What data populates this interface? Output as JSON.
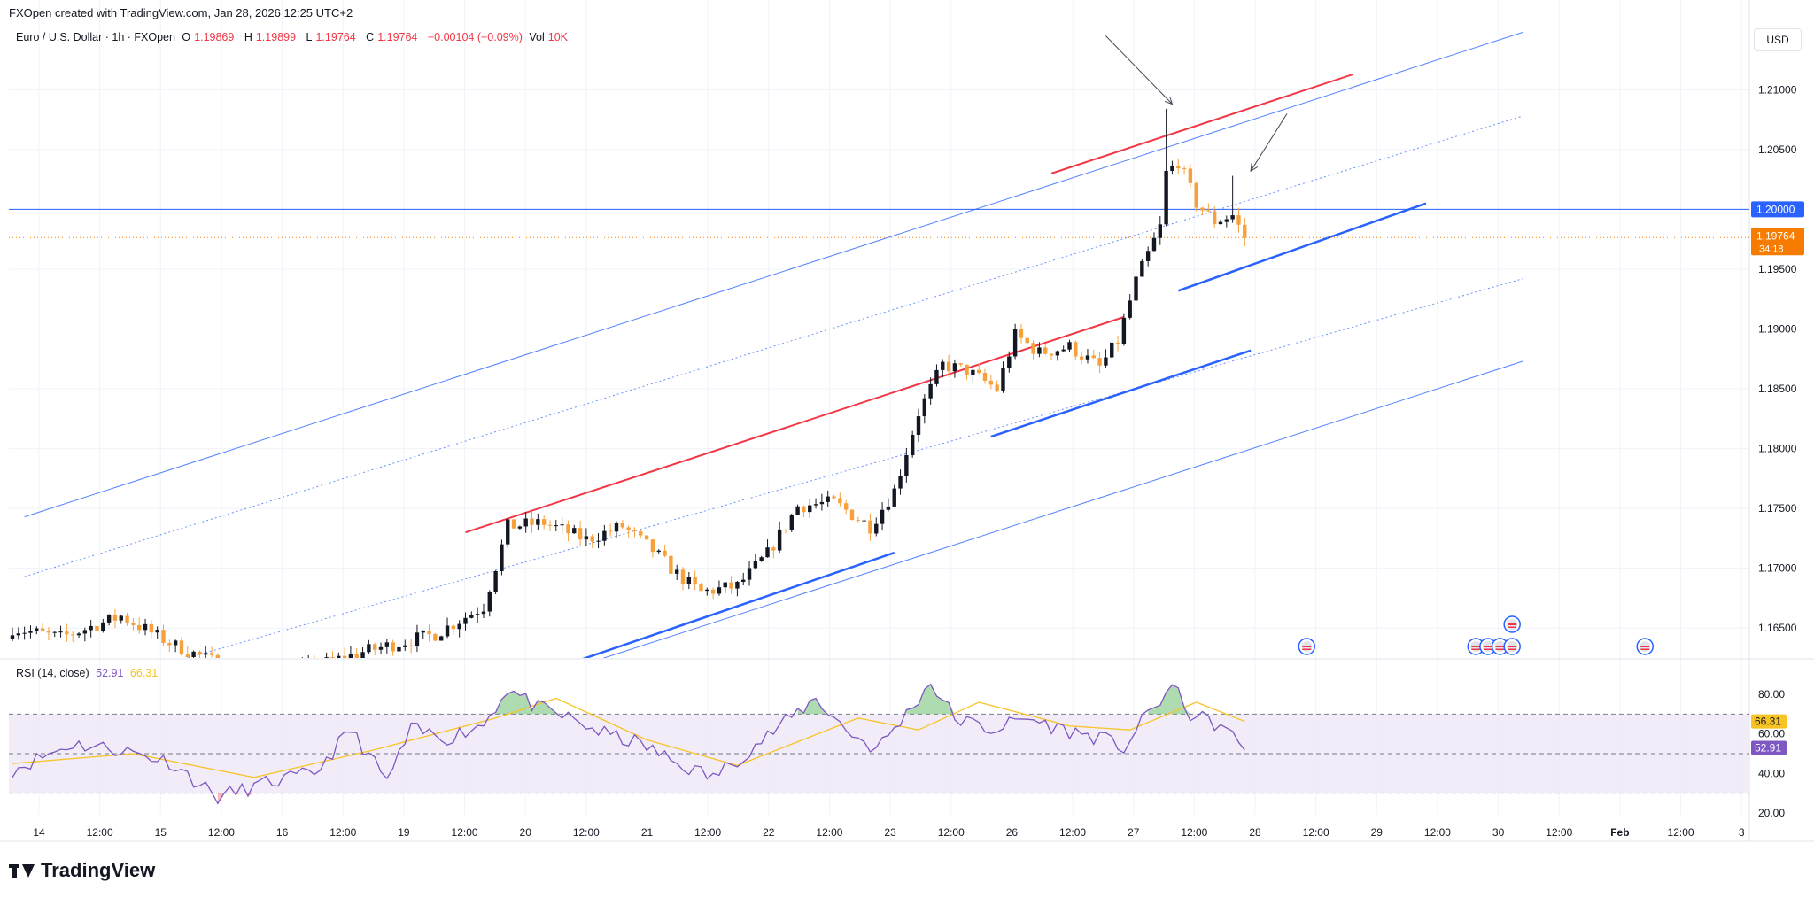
{
  "header": {
    "credit": "FXOpen created with TradingView.com, Jan 28, 2026 12:25 UTC+2",
    "symbol": "Euro / U.S. Dollar · 1h · FXOpen",
    "open_label": "O",
    "open": "1.19869",
    "high_label": "H",
    "high": "1.19899",
    "low_label": "L",
    "low": "1.19764",
    "close_label": "C",
    "close": "1.19764",
    "change": "−0.00104 (−0.09%)",
    "vol_label": "Vol",
    "vol": "10K",
    "currency_button": "USD"
  },
  "rsi_legend": {
    "label": "RSI (14, close)",
    "rsi_value": "52.91",
    "ma_value": "66.31"
  },
  "branding": {
    "logo_text": "TradingView"
  },
  "colors": {
    "up_candle": "#131722",
    "down_candle": "#f7a13c",
    "channel_blue": "#2962ff",
    "channel_red": "#f23645",
    "rsi_line": "#7e57c2",
    "rsi_ma": "#f7c325",
    "rsi_band": "#ede7f6",
    "price_tag": "#f57c00",
    "level_tag": "#2962ff"
  },
  "chart_data": [
    {
      "type": "candlestick",
      "title": "Euro / U.S. Dollar · 1h · FXOpen",
      "ylim": [
        1.1625,
        1.2175
      ],
      "y_ticks": [
        "1.21000",
        "1.20500",
        "1.20000",
        "1.19500",
        "1.19000",
        "1.18500",
        "1.18000",
        "1.17500",
        "1.17000",
        "1.16500"
      ],
      "x_ticks": [
        "14",
        "12:00",
        "15",
        "12:00",
        "16",
        "12:00",
        "19",
        "12:00",
        "20",
        "12:00",
        "21",
        "12:00",
        "22",
        "12:00",
        "23",
        "12:00",
        "26",
        "12:00",
        "27",
        "12:00",
        "28",
        "12:00",
        "29",
        "12:00",
        "30",
        "12:00",
        "Feb",
        "12:00",
        "3"
      ],
      "horizontal_level": {
        "value": 1.2,
        "label": "1.20000"
      },
      "last_price": {
        "value": 1.19764,
        "label": "1.19764",
        "countdown": "34:18"
      },
      "close_anchors": [
        {
          "bar": 0,
          "close": 1.165
        },
        {
          "bar": 8,
          "close": 1.1642
        },
        {
          "bar": 18,
          "close": 1.166
        },
        {
          "bar": 27,
          "close": 1.1635
        },
        {
          "bar": 38,
          "close": 1.1612
        },
        {
          "bar": 48,
          "close": 1.1615
        },
        {
          "bar": 58,
          "close": 1.163
        },
        {
          "bar": 70,
          "close": 1.1645
        },
        {
          "bar": 78,
          "close": 1.1668
        },
        {
          "bar": 82,
          "close": 1.1735
        },
        {
          "bar": 88,
          "close": 1.1738
        },
        {
          "bar": 95,
          "close": 1.1724
        },
        {
          "bar": 101,
          "close": 1.1735
        },
        {
          "bar": 106,
          "close": 1.1715
        },
        {
          "bar": 110,
          "close": 1.1695
        },
        {
          "bar": 114,
          "close": 1.168
        },
        {
          "bar": 120,
          "close": 1.1685
        },
        {
          "bar": 125,
          "close": 1.1712
        },
        {
          "bar": 130,
          "close": 1.1752
        },
        {
          "bar": 136,
          "close": 1.1755
        },
        {
          "bar": 142,
          "close": 1.1735
        },
        {
          "bar": 146,
          "close": 1.1765
        },
        {
          "bar": 150,
          "close": 1.183
        },
        {
          "bar": 154,
          "close": 1.187
        },
        {
          "bar": 158,
          "close": 1.1865
        },
        {
          "bar": 163,
          "close": 1.185
        },
        {
          "bar": 166,
          "close": 1.1895
        },
        {
          "bar": 170,
          "close": 1.188
        },
        {
          "bar": 175,
          "close": 1.1885
        },
        {
          "bar": 180,
          "close": 1.1868
        },
        {
          "bar": 183,
          "close": 1.189
        },
        {
          "bar": 186,
          "close": 1.194
        },
        {
          "bar": 190,
          "close": 1.1985
        },
        {
          "bar": 191,
          "close": 1.203
        },
        {
          "bar": 193,
          "close": 1.204
        },
        {
          "bar": 196,
          "close": 1.2005
        },
        {
          "bar": 199,
          "close": 1.199
        },
        {
          "bar": 202,
          "close": 1.1995
        },
        {
          "bar": 204,
          "close": 1.19764
        }
      ],
      "channel_lines": [
        {
          "style": "solid",
          "from": {
            "bar": 2,
            "price": 1.1743
          },
          "to": {
            "bar": 250,
            "price": 1.2148
          }
        },
        {
          "style": "dotted",
          "from": {
            "bar": 2,
            "price": 1.1693
          },
          "to": {
            "bar": 250,
            "price": 1.2078
          }
        },
        {
          "style": "dotted",
          "from": {
            "bar": 8,
            "price": 1.1595
          },
          "to": {
            "bar": 250,
            "price": 1.1942
          }
        },
        {
          "style": "solid",
          "from": {
            "bar": 55,
            "price": 1.1555
          },
          "to": {
            "bar": 250,
            "price": 1.1873
          }
        },
        {
          "style": "red",
          "from": {
            "bar": 75,
            "price": 1.173
          },
          "to": {
            "bar": 184,
            "price": 1.191
          }
        },
        {
          "style": "red",
          "from": {
            "bar": 172,
            "price": 1.203
          },
          "to": {
            "bar": 222,
            "price": 1.2113
          }
        },
        {
          "style": "blue-bold",
          "from": {
            "bar": 92,
            "price": 1.162
          },
          "to": {
            "bar": 146,
            "price": 1.1713
          }
        },
        {
          "style": "blue-bold",
          "from": {
            "bar": 162,
            "price": 1.181
          },
          "to": {
            "bar": 205,
            "price": 1.1882
          }
        },
        {
          "style": "blue-bold",
          "from": {
            "bar": 193,
            "price": 1.1932
          },
          "to": {
            "bar": 234,
            "price": 1.2005
          }
        }
      ],
      "annotations": [
        {
          "type": "arrow",
          "from": {
            "bar": 181,
            "price": 1.2145
          },
          "to": {
            "bar": 192,
            "price": 1.2088
          }
        },
        {
          "type": "arrow",
          "from": {
            "bar": 211,
            "price": 1.208
          },
          "to": {
            "bar": 205,
            "price": 1.2032
          }
        }
      ],
      "event_markers": [
        {
          "bar": 215,
          "row": "low"
        },
        {
          "bar": 243,
          "row": "low"
        },
        {
          "bar": 245,
          "row": "low"
        },
        {
          "bar": 247,
          "row": "low"
        },
        {
          "bar": 249,
          "row": "low"
        },
        {
          "bar": 249,
          "row": "high"
        },
        {
          "bar": 271,
          "row": "low"
        }
      ]
    },
    {
      "type": "line",
      "title": "RSI (14, close)",
      "ylim": [
        17,
        90
      ],
      "y_ticks": [
        "80.00",
        "60.00",
        "40.00",
        "20.00"
      ],
      "bands": {
        "upper": 70,
        "middle": 50,
        "lower": 30
      },
      "series": [
        {
          "name": "RSI",
          "last": "52.91"
        },
        {
          "name": "RSI-based MA",
          "last": "66.31"
        }
      ],
      "rsi_anchors": [
        {
          "bar": 0,
          "value": 42
        },
        {
          "bar": 10,
          "value": 55
        },
        {
          "bar": 18,
          "value": 52
        },
        {
          "bar": 26,
          "value": 46
        },
        {
          "bar": 34,
          "value": 28
        },
        {
          "bar": 42,
          "value": 35
        },
        {
          "bar": 50,
          "value": 40
        },
        {
          "bar": 56,
          "value": 62
        },
        {
          "bar": 62,
          "value": 36
        },
        {
          "bar": 66,
          "value": 62
        },
        {
          "bar": 72,
          "value": 58
        },
        {
          "bar": 78,
          "value": 65
        },
        {
          "bar": 82,
          "value": 83
        },
        {
          "bar": 87,
          "value": 73
        },
        {
          "bar": 92,
          "value": 68
        },
        {
          "bar": 98,
          "value": 60
        },
        {
          "bar": 104,
          "value": 55
        },
        {
          "bar": 110,
          "value": 45
        },
        {
          "bar": 116,
          "value": 38
        },
        {
          "bar": 122,
          "value": 52
        },
        {
          "bar": 128,
          "value": 66
        },
        {
          "bar": 133,
          "value": 78
        },
        {
          "bar": 138,
          "value": 62
        },
        {
          "bar": 143,
          "value": 52
        },
        {
          "bar": 148,
          "value": 70
        },
        {
          "bar": 152,
          "value": 86
        },
        {
          "bar": 156,
          "value": 68
        },
        {
          "bar": 162,
          "value": 62
        },
        {
          "bar": 168,
          "value": 68
        },
        {
          "bar": 174,
          "value": 62
        },
        {
          "bar": 180,
          "value": 58
        },
        {
          "bar": 184,
          "value": 53
        },
        {
          "bar": 188,
          "value": 70
        },
        {
          "bar": 192,
          "value": 84
        },
        {
          "bar": 195,
          "value": 70
        },
        {
          "bar": 200,
          "value": 64
        },
        {
          "bar": 204,
          "value": 52.91
        }
      ],
      "ma_anchors": [
        {
          "bar": 0,
          "value": 45
        },
        {
          "bar": 20,
          "value": 50
        },
        {
          "bar": 40,
          "value": 38
        },
        {
          "bar": 60,
          "value": 52
        },
        {
          "bar": 80,
          "value": 68
        },
        {
          "bar": 90,
          "value": 78
        },
        {
          "bar": 105,
          "value": 57
        },
        {
          "bar": 120,
          "value": 44
        },
        {
          "bar": 140,
          "value": 68
        },
        {
          "bar": 150,
          "value": 62
        },
        {
          "bar": 160,
          "value": 76
        },
        {
          "bar": 175,
          "value": 64
        },
        {
          "bar": 185,
          "value": 62
        },
        {
          "bar": 196,
          "value": 76
        },
        {
          "bar": 204,
          "value": 66.31
        }
      ]
    }
  ]
}
